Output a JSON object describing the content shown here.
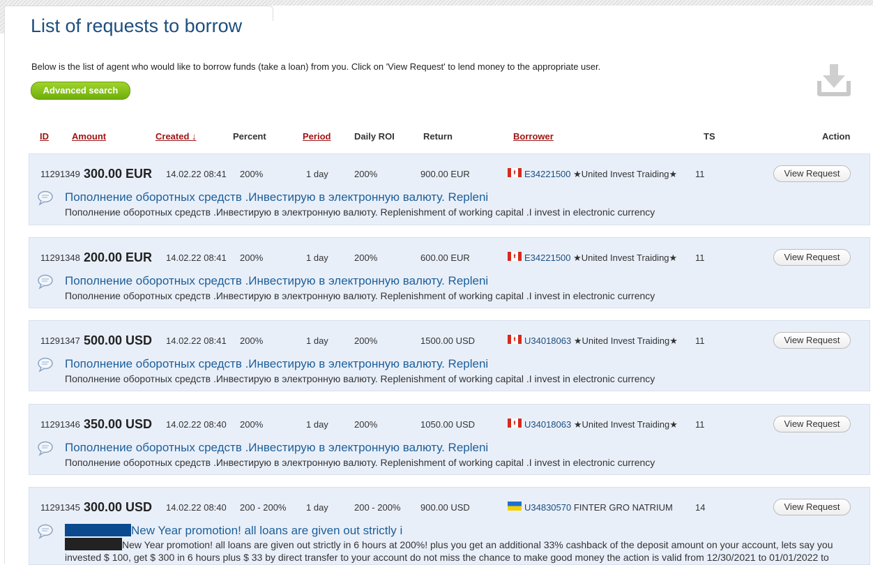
{
  "page": {
    "title": "List of requests to borrow",
    "intro": "Below is the list of agent who would like to borrow funds (take a loan) from you. Click on 'View Request' to lend money to the appropriate user.",
    "advanced_search_label": "Advanced search"
  },
  "icons": {
    "download": "download-tray-icon",
    "comment": "speech-bubble-icon"
  },
  "colors": {
    "row_bg": "#e9eff9",
    "title_blue": "#1c4e7d",
    "sort_red": "#a01414",
    "button_green": "#86c21d"
  },
  "columns": {
    "id": "ID",
    "amount": "Amount",
    "created": "Created ↓",
    "percent": "Percent",
    "period": "Period",
    "daily_roi": "Daily ROI",
    "return": "Return",
    "borrower": "Borrower",
    "ts": "TS",
    "action": "Action"
  },
  "rows": [
    {
      "id": "11291349",
      "amount": "300.00 EUR",
      "created": "14.02.22 08:41",
      "percent": "200%",
      "period": "1 day",
      "roi": "200%",
      "return": "900.00 EUR",
      "flag": "canada",
      "borrower_id": "E34221500",
      "borrower_name": "★United Invest Traiding★",
      "ts": "11",
      "action": "View Request",
      "title": "Пополнение оборотных средств .Инвестирую в электронную валюту. Repleni",
      "desc": "Пополнение оборотных средств .Инвестирую в электронную валюту. Replenishment of working capital .I invest in electronic currency"
    },
    {
      "id": "11291348",
      "amount": "200.00 EUR",
      "created": "14.02.22 08:41",
      "percent": "200%",
      "period": "1 day",
      "roi": "200%",
      "return": "600.00 EUR",
      "flag": "canada",
      "borrower_id": "E34221500",
      "borrower_name": "★United Invest Traiding★",
      "ts": "11",
      "action": "View Request",
      "title": "Пополнение оборотных средств .Инвестирую в электронную валюту. Repleni",
      "desc": "Пополнение оборотных средств .Инвестирую в электронную валюту. Replenishment of working capital .I invest in electronic currency"
    },
    {
      "id": "11291347",
      "amount": "500.00 USD",
      "created": "14.02.22 08:41",
      "percent": "200%",
      "period": "1 day",
      "roi": "200%",
      "return": "1500.00 USD",
      "flag": "canada",
      "borrower_id": "U34018063",
      "borrower_name": "★United Invest Traiding★",
      "ts": "11",
      "action": "View Request",
      "title": "Пополнение оборотных средств .Инвестирую в электронную валюту. Repleni",
      "desc": "Пополнение оборотных средств .Инвестирую в электронную валюту. Replenishment of working capital .I invest in electronic currency"
    },
    {
      "id": "11291346",
      "amount": "350.00 USD",
      "created": "14.02.22 08:40",
      "percent": "200%",
      "period": "1 day",
      "roi": "200%",
      "return": "1050.00 USD",
      "flag": "canada",
      "borrower_id": "U34018063",
      "borrower_name": "★United Invest Traiding★",
      "ts": "11",
      "action": "View Request",
      "title": "Пополнение оборотных средств .Инвестирую в электронную валюту. Repleni",
      "desc": "Пополнение оборотных средств .Инвестирую в электронную валюту. Replenishment of working capital .I invest in electronic currency"
    },
    {
      "id": "11291345",
      "amount": "300.00 USD",
      "created": "14.02.22 08:40",
      "percent": "200 - 200%",
      "period": "1 day",
      "roi": "200 - 200%",
      "return": "900.00 USD",
      "flag": "ukraine",
      "borrower_id": "U34830570",
      "borrower_name": "FINTER GRO NATRIUM",
      "ts": "14",
      "action": "View Request",
      "title": "New Year promotion! all loans are given out strictly i",
      "desc": "New Year promotion! all loans are given out strictly in 6 hours at 200%! plus you get an additional 33% cashback of the deposit amount on your account, lets say you invested $ 100, get $ 300 in 6 hours plus $ 33 by direct transfer to your account do not miss the chance to make good money the action is valid from 12/30/2021 to 01/01/2022 to"
    }
  ]
}
